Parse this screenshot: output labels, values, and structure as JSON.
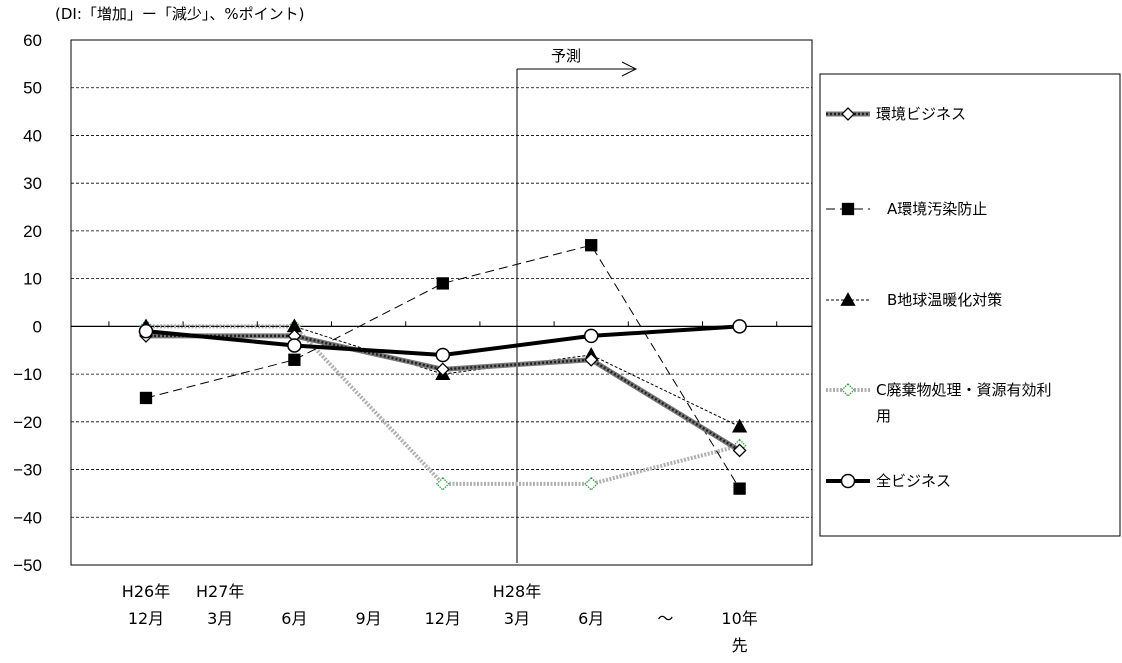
{
  "chart_data": {
    "type": "line",
    "unit_label": "(DI:「増加」ー「減少」、%ポイント)",
    "x_categories": [
      {
        "top": "H26年",
        "bottom": "12月"
      },
      {
        "top": "H27年",
        "bottom": "3月"
      },
      {
        "top": "",
        "bottom": "6月"
      },
      {
        "top": "",
        "bottom": "9月"
      },
      {
        "top": "",
        "bottom": "12月"
      },
      {
        "top": "H28年",
        "bottom": "3月"
      },
      {
        "top": "",
        "bottom": "6月"
      },
      {
        "top": "",
        "bottom": "〜"
      },
      {
        "top": "",
        "bottom": "10年",
        "bottom2": "先"
      }
    ],
    "ylim": [
      -50,
      60
    ],
    "yticks": [
      60,
      50,
      40,
      30,
      20,
      10,
      0,
      -10,
      -20,
      -30,
      -40,
      -50
    ],
    "forecast_label": "予測",
    "forecast_start_index": 5,
    "series": [
      {
        "name": "環境ビジネス",
        "style": "env",
        "x": [
          0,
          2,
          4,
          6,
          8
        ],
        "values": [
          -2,
          -2,
          -9,
          -7,
          -26
        ]
      },
      {
        "name": "A環境汚染防止",
        "style": "a",
        "x": [
          0,
          2,
          4,
          6,
          8
        ],
        "values": [
          -15,
          -7,
          9,
          17,
          -34
        ]
      },
      {
        "name": "B地球温暖化対策",
        "style": "b",
        "x": [
          0,
          2,
          4,
          6,
          8
        ],
        "values": [
          0,
          0,
          -10,
          -6,
          -21
        ]
      },
      {
        "name": "C廃棄物処理・資源有効利用",
        "style": "c",
        "x": [
          0,
          2,
          4,
          6,
          8
        ],
        "values": [
          0,
          0,
          -33,
          -33,
          -25
        ]
      },
      {
        "name": "全ビジネス",
        "style": "all",
        "x": [
          0,
          2,
          4,
          6,
          8
        ],
        "values": [
          -1,
          -4,
          -6,
          -2,
          0
        ]
      }
    ],
    "legend": [
      {
        "label": "環境ビジネス",
        "style": "env",
        "lines": [
          "環境ビジネス"
        ]
      },
      {
        "label": "A環境汚染防止",
        "style": "a",
        "lines": [
          "A環境汚染防止"
        ]
      },
      {
        "label": "B地球温暖化対策",
        "style": "b",
        "lines": [
          "B地球温暖化対策"
        ]
      },
      {
        "label": "C廃棄物処理・資源有効利用",
        "style": "c",
        "lines": [
          "C廃棄物処理・資源有効利",
          "用"
        ]
      },
      {
        "label": "全ビジネス",
        "style": "all",
        "lines": [
          "全ビジネス"
        ]
      }
    ],
    "legend_placement": "right",
    "grid": "horizontal dashed",
    "colors": {
      "c_marker": "#3aa04a",
      "c_line": "#b0b0b0"
    }
  }
}
